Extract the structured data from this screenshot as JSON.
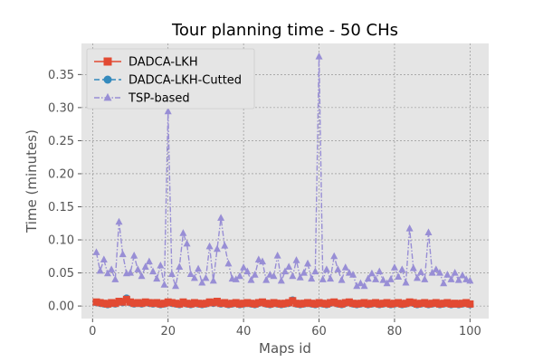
{
  "chart_data": {
    "type": "line",
    "title": "Tour planning time - 50 CHs",
    "xlabel": "Maps id",
    "ylabel": "Time (minutes)",
    "xlim": [
      -2.95,
      104.95
    ],
    "ylim": [
      -0.019,
      0.397
    ],
    "xticks": [
      0,
      20,
      40,
      60,
      80,
      100
    ],
    "yticks": [
      0.0,
      0.05,
      0.1,
      0.15,
      0.2,
      0.25,
      0.3,
      0.35
    ],
    "ytick_labels": [
      "0.00",
      "0.05",
      "0.10",
      "0.15",
      "0.20",
      "0.25",
      "0.30",
      "0.35"
    ],
    "grid": true,
    "legend_position": "top-left",
    "x": [
      1,
      2,
      3,
      4,
      5,
      6,
      7,
      8,
      9,
      10,
      11,
      12,
      13,
      14,
      15,
      16,
      17,
      18,
      19,
      20,
      21,
      22,
      23,
      24,
      25,
      26,
      27,
      28,
      29,
      30,
      31,
      32,
      33,
      34,
      35,
      36,
      37,
      38,
      39,
      40,
      41,
      42,
      43,
      44,
      45,
      46,
      47,
      48,
      49,
      50,
      51,
      52,
      53,
      54,
      55,
      56,
      57,
      58,
      59,
      60,
      61,
      62,
      63,
      64,
      65,
      66,
      67,
      68,
      69,
      70,
      71,
      72,
      73,
      74,
      75,
      76,
      77,
      78,
      79,
      80,
      81,
      82,
      83,
      84,
      85,
      86,
      87,
      88,
      89,
      90,
      91,
      92,
      93,
      94,
      95,
      96,
      97,
      98,
      99,
      100
    ],
    "series": [
      {
        "name": "DADCA-LKH",
        "color": "#E24A33",
        "marker": "square",
        "linestyle": "solid",
        "values": [
          0.006,
          0.005,
          0.004,
          0.003,
          0.005,
          0.004,
          0.007,
          0.006,
          0.01,
          0.006,
          0.004,
          0.005,
          0.004,
          0.006,
          0.005,
          0.004,
          0.005,
          0.003,
          0.004,
          0.006,
          0.005,
          0.004,
          0.003,
          0.006,
          0.004,
          0.003,
          0.005,
          0.004,
          0.003,
          0.004,
          0.006,
          0.005,
          0.007,
          0.004,
          0.005,
          0.003,
          0.004,
          0.005,
          0.003,
          0.004,
          0.005,
          0.004,
          0.003,
          0.005,
          0.006,
          0.004,
          0.003,
          0.005,
          0.004,
          0.003,
          0.004,
          0.005,
          0.008,
          0.004,
          0.003,
          0.004,
          0.005,
          0.004,
          0.003,
          0.005,
          0.004,
          0.003,
          0.005,
          0.006,
          0.004,
          0.003,
          0.005,
          0.006,
          0.004,
          0.003,
          0.004,
          0.005,
          0.003,
          0.004,
          0.005,
          0.003,
          0.004,
          0.005,
          0.003,
          0.004,
          0.005,
          0.003,
          0.004,
          0.006,
          0.005,
          0.003,
          0.004,
          0.005,
          0.003,
          0.004,
          0.005,
          0.003,
          0.004,
          0.005,
          0.003,
          0.004,
          0.003,
          0.004,
          0.005,
          0.003
        ]
      },
      {
        "name": "DADCA-LKH-Cutted",
        "color": "#348ABD",
        "marker": "circle",
        "linestyle": "dashed",
        "values": [
          0.005,
          0.004,
          0.003,
          0.002,
          0.004,
          0.003,
          0.006,
          0.005,
          0.012,
          0.005,
          0.003,
          0.004,
          0.003,
          0.005,
          0.004,
          0.003,
          0.004,
          0.002,
          0.003,
          0.005,
          0.004,
          0.003,
          0.002,
          0.005,
          0.003,
          0.002,
          0.004,
          0.003,
          0.002,
          0.003,
          0.005,
          0.004,
          0.006,
          0.003,
          0.004,
          0.002,
          0.003,
          0.004,
          0.002,
          0.003,
          0.004,
          0.003,
          0.002,
          0.004,
          0.005,
          0.003,
          0.002,
          0.004,
          0.003,
          0.002,
          0.003,
          0.004,
          0.009,
          0.003,
          0.002,
          0.003,
          0.004,
          0.003,
          0.002,
          0.004,
          0.003,
          0.002,
          0.004,
          0.005,
          0.003,
          0.002,
          0.004,
          0.005,
          0.003,
          0.002,
          0.003,
          0.004,
          0.002,
          0.003,
          0.004,
          0.002,
          0.003,
          0.004,
          0.002,
          0.003,
          0.004,
          0.002,
          0.003,
          0.005,
          0.004,
          0.002,
          0.003,
          0.004,
          0.002,
          0.003,
          0.004,
          0.002,
          0.003,
          0.004,
          0.002,
          0.003,
          0.002,
          0.003,
          0.004,
          0.002
        ]
      },
      {
        "name": "TSP-based",
        "color": "#988ED5",
        "marker": "triangle",
        "linestyle": "dashdot",
        "values": [
          0.081,
          0.053,
          0.07,
          0.049,
          0.055,
          0.04,
          0.127,
          0.078,
          0.049,
          0.05,
          0.076,
          0.055,
          0.045,
          0.059,
          0.067,
          0.052,
          0.041,
          0.061,
          0.032,
          0.294,
          0.048,
          0.03,
          0.059,
          0.11,
          0.094,
          0.048,
          0.042,
          0.056,
          0.035,
          0.042,
          0.09,
          0.038,
          0.086,
          0.133,
          0.091,
          0.064,
          0.041,
          0.04,
          0.045,
          0.058,
          0.052,
          0.039,
          0.047,
          0.07,
          0.067,
          0.039,
          0.047,
          0.045,
          0.076,
          0.038,
          0.052,
          0.059,
          0.045,
          0.069,
          0.043,
          0.05,
          0.064,
          0.041,
          0.052,
          0.377,
          0.04,
          0.055,
          0.041,
          0.075,
          0.055,
          0.039,
          0.058,
          0.05,
          0.047,
          0.03,
          0.034,
          0.03,
          0.041,
          0.049,
          0.04,
          0.052,
          0.039,
          0.034,
          0.04,
          0.058,
          0.044,
          0.055,
          0.035,
          0.117,
          0.057,
          0.042,
          0.051,
          0.04,
          0.111,
          0.05,
          0.055,
          0.05,
          0.034,
          0.047,
          0.04,
          0.05,
          0.039,
          0.046,
          0.04,
          0.038
        ]
      }
    ]
  }
}
